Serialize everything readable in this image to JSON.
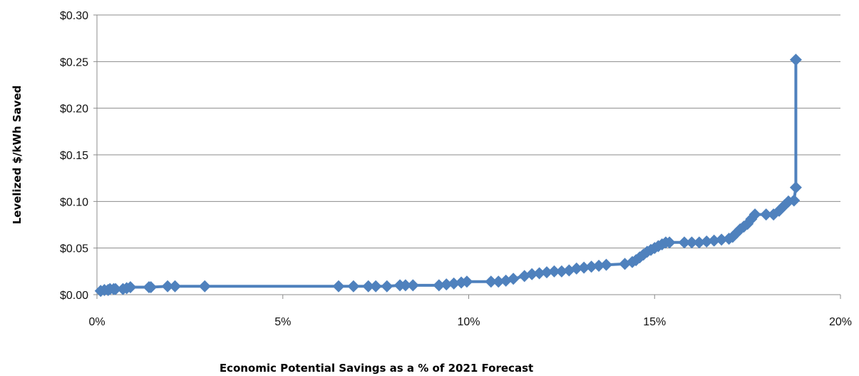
{
  "chart_data": {
    "type": "line",
    "xlabel": "Economic Potential Savings as a % of 2021 Forecast",
    "ylabel": "Levelized $/kWh Saved",
    "xlim": [
      0,
      20
    ],
    "ylim": [
      0,
      0.3
    ],
    "x_ticks": [
      {
        "value": 0,
        "label": "0%"
      },
      {
        "value": 5,
        "label": "5%"
      },
      {
        "value": 10,
        "label": "10%"
      },
      {
        "value": 15,
        "label": "15%"
      },
      {
        "value": 20,
        "label": "20%"
      }
    ],
    "y_ticks": [
      {
        "value": 0.0,
        "label": "$0.00"
      },
      {
        "value": 0.05,
        "label": "$0.05"
      },
      {
        "value": 0.1,
        "label": "$0.10"
      },
      {
        "value": 0.15,
        "label": "$0.15"
      },
      {
        "value": 0.2,
        "label": "$0.20"
      },
      {
        "value": 0.25,
        "label": "$0.25"
      },
      {
        "value": 0.3,
        "label": "$0.30"
      }
    ],
    "grid": "horizontal",
    "marker": "diamond",
    "series_color": "#4F81BD",
    "series": [
      {
        "x": [
          0.1,
          0.2,
          0.3,
          0.35,
          0.45,
          0.5,
          0.7,
          0.8,
          0.9,
          1.4,
          1.45,
          1.9,
          2.1,
          2.9,
          6.5,
          6.9,
          7.3,
          7.5,
          7.8,
          8.15,
          8.3,
          8.5,
          9.2,
          9.4,
          9.6,
          9.8,
          9.95,
          10.6,
          10.8,
          11.0,
          11.2,
          11.5,
          11.7,
          11.9,
          12.1,
          12.3,
          12.5,
          12.7,
          12.9,
          13.1,
          13.3,
          13.5,
          13.7,
          14.2,
          14.4,
          14.5,
          14.6,
          14.7,
          14.8,
          14.9,
          15.0,
          15.1,
          15.2,
          15.3,
          15.4,
          15.8,
          16.0,
          16.2,
          16.4,
          16.6,
          16.8,
          17.0,
          17.1,
          17.2,
          17.3,
          17.4,
          17.5,
          17.6,
          17.7,
          18.0,
          18.2,
          18.35,
          18.5,
          18.6,
          18.75,
          18.8,
          18.8
        ],
        "y": [
          0.004,
          0.005,
          0.005,
          0.006,
          0.006,
          0.006,
          0.006,
          0.007,
          0.008,
          0.008,
          0.008,
          0.009,
          0.009,
          0.009,
          0.009,
          0.009,
          0.009,
          0.009,
          0.009,
          0.01,
          0.01,
          0.01,
          0.01,
          0.011,
          0.012,
          0.013,
          0.014,
          0.014,
          0.014,
          0.015,
          0.017,
          0.02,
          0.022,
          0.023,
          0.024,
          0.025,
          0.025,
          0.026,
          0.028,
          0.029,
          0.03,
          0.031,
          0.032,
          0.033,
          0.035,
          0.037,
          0.04,
          0.043,
          0.046,
          0.048,
          0.05,
          0.052,
          0.054,
          0.056,
          0.056,
          0.056,
          0.056,
          0.056,
          0.057,
          0.058,
          0.059,
          0.06,
          0.062,
          0.066,
          0.07,
          0.073,
          0.076,
          0.081,
          0.086,
          0.086,
          0.086,
          0.09,
          0.096,
          0.1,
          0.101,
          0.115,
          0.252
        ]
      }
    ]
  }
}
